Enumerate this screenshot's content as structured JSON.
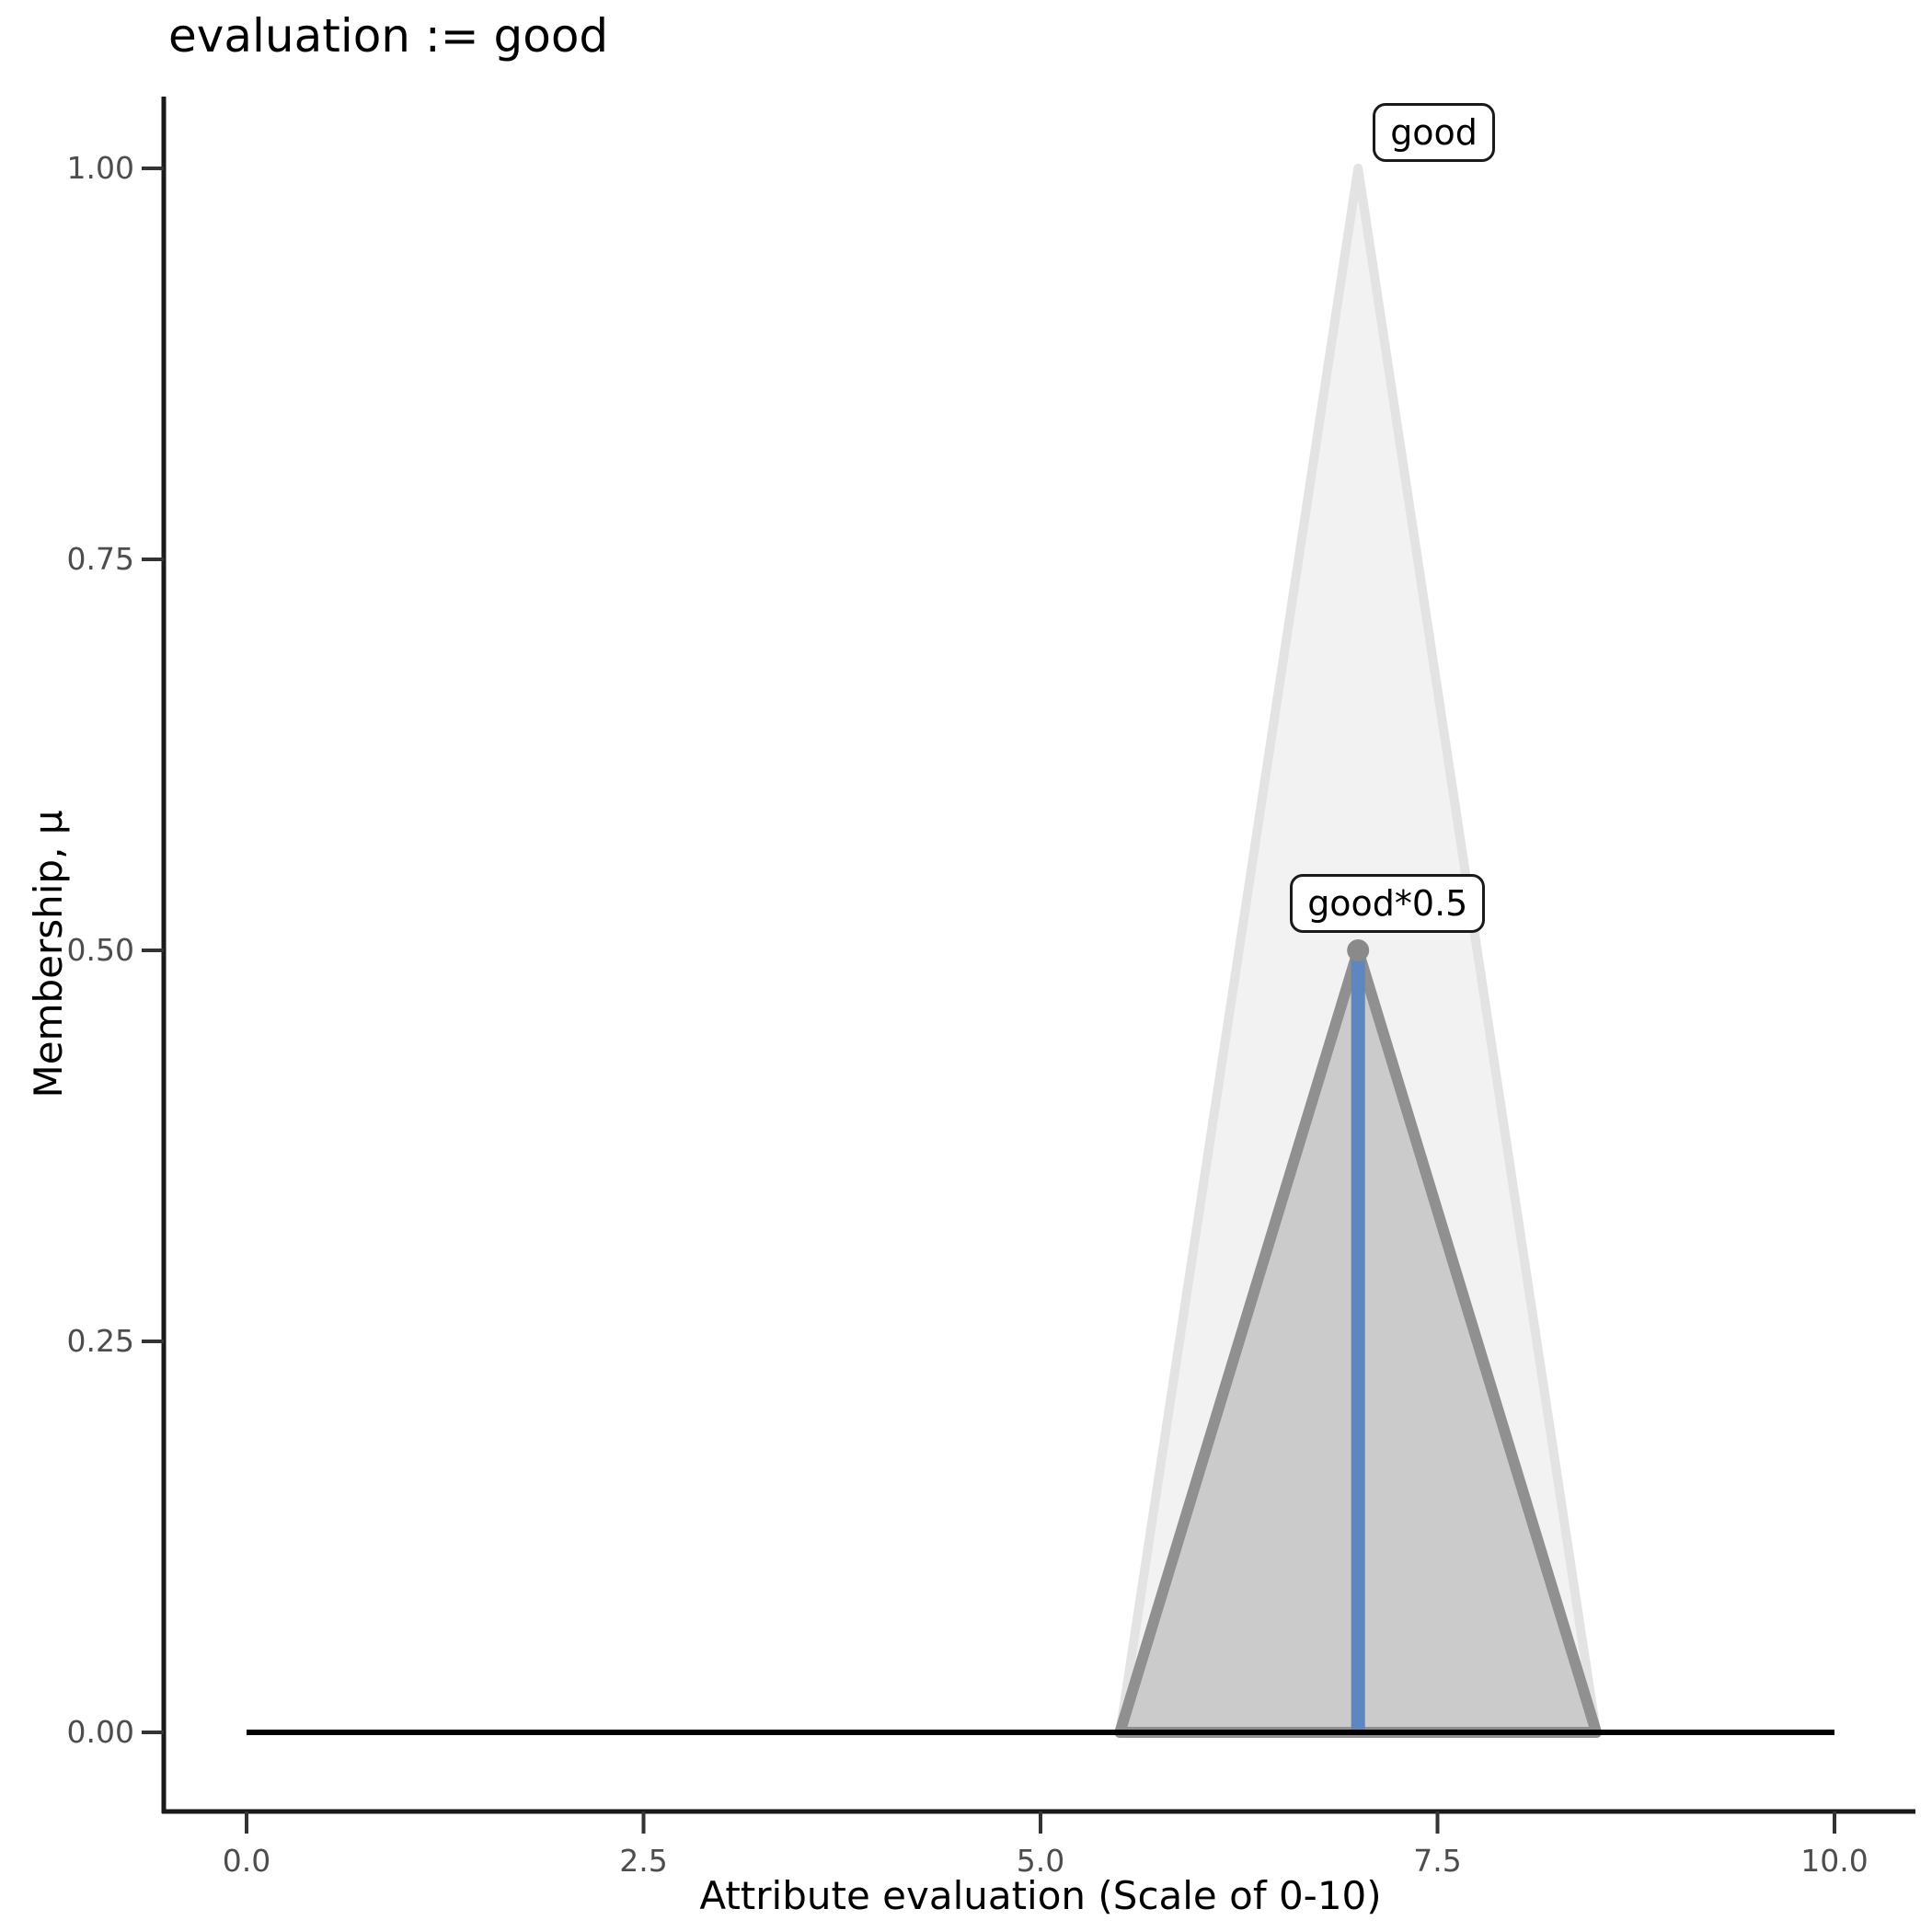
{
  "title": "evaluation := good",
  "chart_data": {
    "type": "area",
    "title": "evaluation := good",
    "xlabel": "Attribute evaluation (Scale of 0-10)",
    "ylabel": "Membership, μ",
    "xlim": [
      0,
      10
    ],
    "ylim": [
      0,
      1
    ],
    "grid": "off",
    "legend": "none",
    "background": "#ffffff",
    "x_ticks": {
      "values": [
        0,
        2.5,
        5,
        7.5,
        10
      ],
      "labels": [
        "0.0",
        "2.5",
        "5.0",
        "7.5",
        "10.0"
      ]
    },
    "y_ticks": {
      "values": [
        0,
        0.25,
        0.5,
        0.75,
        1
      ],
      "labels": [
        "0.00",
        "0.25",
        "0.50",
        "0.75",
        "1.00"
      ]
    },
    "axis_color": "#1a1a1a",
    "tick_label_color": "#4d4d4d",
    "series": [
      {
        "name": "good",
        "kind": "polygon",
        "description": "full membership triangle for fuzzy set 'good'",
        "points": [
          [
            5.5,
            0
          ],
          [
            7,
            1
          ],
          [
            8.5,
            0
          ]
        ],
        "fill": "#F2F2F2",
        "stroke": "#E3E3E3",
        "stroke_width": 10
      },
      {
        "name": "good*0.5",
        "kind": "polygon",
        "description": "membership triangle 'good' scaled by 0.5",
        "points": [
          [
            5.5,
            0
          ],
          [
            7,
            0.5
          ],
          [
            8.5,
            0
          ]
        ],
        "fill": "#CBCBCB",
        "stroke": "#909090",
        "stroke_width": 12,
        "peak_marker": {
          "x": 7,
          "y": 0.5,
          "color": "#8A8A8A",
          "radius": 12
        }
      },
      {
        "name": "peak-vline",
        "kind": "vline",
        "x": 7,
        "y": [
          0,
          0.5
        ],
        "color": "#5E86C1",
        "stroke_width": 15
      },
      {
        "name": "result-baseline",
        "kind": "hline",
        "y": 0,
        "x": [
          0,
          10
        ],
        "color": "#000000",
        "stroke_width": 6
      }
    ],
    "annotations": [
      {
        "text": "good",
        "anchor_x": 7,
        "anchor_y": 1
      },
      {
        "text": "good*0.5",
        "anchor_x": 7,
        "anchor_y": 0.5
      }
    ]
  }
}
